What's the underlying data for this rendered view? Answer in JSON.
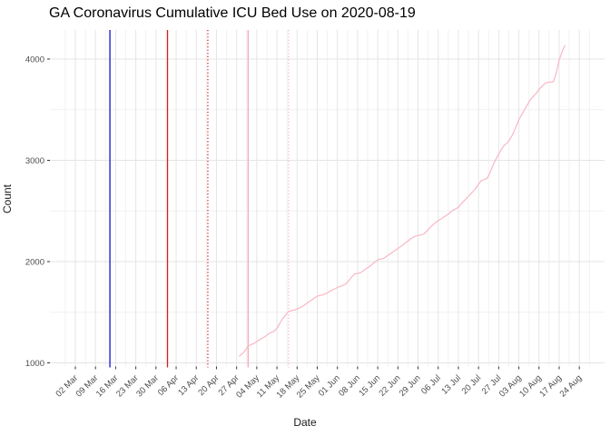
{
  "page": {
    "background": "#ffffff"
  },
  "chart_data": {
    "type": "line",
    "title": "GA Coronavirus Cumulative ICU Bed Use on 2020-08-19",
    "xlabel": "Date",
    "ylabel": "Count",
    "legend": "none",
    "grid": {
      "show": true,
      "major_color": "#e5e5e5",
      "minor_color": "#f1f1f1"
    },
    "x_axis": {
      "start_date": "2020-03-02",
      "end_date": "2020-08-24",
      "tick_interval_days": 7,
      "tick_labels": [
        "02 Mar",
        "09 Mar",
        "16 Mar",
        "23 Mar",
        "30 Mar",
        "06 Apr",
        "13 Apr",
        "20 Apr",
        "27 Apr",
        "04 May",
        "11 May",
        "18 May",
        "25 May",
        "01 Jun",
        "08 Jun",
        "15 Jun",
        "22 Jun",
        "29 Jun",
        "06 Jul",
        "13 Jul",
        "20 Jul",
        "27 Jul",
        "03 Aug",
        "10 Aug",
        "17 Aug",
        "24 Aug"
      ],
      "label_angle_deg": 45,
      "label_color": "#4d4d4d"
    },
    "y_axis": {
      "min": 917,
      "max": 4290,
      "ticks": [
        1000,
        2000,
        3000,
        4000
      ],
      "minor_ticks": [
        1500,
        2500,
        3500
      ],
      "label_color": "#4d4d4d"
    },
    "vlines": [
      {
        "date": "2020-03-14",
        "style": "solid",
        "color": "#1414d2"
      },
      {
        "date": "2020-04-03",
        "style": "solid",
        "color": "#d02020"
      },
      {
        "date": "2020-04-17",
        "style": "dotted",
        "color": "#d02020"
      },
      {
        "date": "2020-05-01",
        "style": "solid",
        "color": "#f7a9bc"
      },
      {
        "date": "2020-05-15",
        "style": "dotted",
        "color": "#f7b4c4"
      }
    ],
    "series": [
      {
        "name": "cumulative-icu-bed-use",
        "color": "#f9b7c4",
        "points": [
          [
            "2020-04-28",
            1068
          ],
          [
            "2020-04-29",
            1090
          ],
          [
            "2020-04-30",
            1125
          ],
          [
            "2020-05-01",
            1166
          ],
          [
            "2020-05-02",
            1180
          ],
          [
            "2020-05-03",
            1192
          ],
          [
            "2020-05-04",
            1210
          ],
          [
            "2020-05-05",
            1230
          ],
          [
            "2020-05-06",
            1246
          ],
          [
            "2020-05-07",
            1262
          ],
          [
            "2020-05-08",
            1285
          ],
          [
            "2020-05-09",
            1300
          ],
          [
            "2020-05-10",
            1312
          ],
          [
            "2020-05-11",
            1340
          ],
          [
            "2020-05-12",
            1392
          ],
          [
            "2020-05-13",
            1436
          ],
          [
            "2020-05-14",
            1472
          ],
          [
            "2020-05-15",
            1508
          ],
          [
            "2020-05-16",
            1516
          ],
          [
            "2020-05-17",
            1522
          ],
          [
            "2020-05-18",
            1532
          ],
          [
            "2020-05-19",
            1545
          ],
          [
            "2020-05-20",
            1560
          ],
          [
            "2020-05-21",
            1580
          ],
          [
            "2020-05-22",
            1602
          ],
          [
            "2020-05-23",
            1620
          ],
          [
            "2020-05-24",
            1640
          ],
          [
            "2020-05-25",
            1658
          ],
          [
            "2020-05-26",
            1666
          ],
          [
            "2020-05-27",
            1672
          ],
          [
            "2020-05-28",
            1682
          ],
          [
            "2020-05-29",
            1700
          ],
          [
            "2020-05-30",
            1716
          ],
          [
            "2020-05-31",
            1730
          ],
          [
            "2020-06-01",
            1744
          ],
          [
            "2020-06-02",
            1756
          ],
          [
            "2020-06-03",
            1766
          ],
          [
            "2020-06-04",
            1780
          ],
          [
            "2020-06-05",
            1815
          ],
          [
            "2020-06-06",
            1850
          ],
          [
            "2020-06-07",
            1878
          ],
          [
            "2020-06-08",
            1884
          ],
          [
            "2020-06-09",
            1890
          ],
          [
            "2020-06-10",
            1910
          ],
          [
            "2020-06-11",
            1930
          ],
          [
            "2020-06-12",
            1950
          ],
          [
            "2020-06-13",
            1972
          ],
          [
            "2020-06-14",
            1995
          ],
          [
            "2020-06-15",
            2018
          ],
          [
            "2020-06-16",
            2026
          ],
          [
            "2020-06-17",
            2030
          ],
          [
            "2020-06-18",
            2050
          ],
          [
            "2020-06-19",
            2070
          ],
          [
            "2020-06-20",
            2090
          ],
          [
            "2020-06-21",
            2110
          ],
          [
            "2020-06-22",
            2128
          ],
          [
            "2020-06-23",
            2150
          ],
          [
            "2020-06-24",
            2170
          ],
          [
            "2020-06-25",
            2192
          ],
          [
            "2020-06-26",
            2215
          ],
          [
            "2020-06-27",
            2235
          ],
          [
            "2020-06-28",
            2250
          ],
          [
            "2020-06-29",
            2258
          ],
          [
            "2020-06-30",
            2263
          ],
          [
            "2020-07-01",
            2272
          ],
          [
            "2020-07-02",
            2300
          ],
          [
            "2020-07-03",
            2330
          ],
          [
            "2020-07-04",
            2360
          ],
          [
            "2020-07-05",
            2385
          ],
          [
            "2020-07-06",
            2405
          ],
          [
            "2020-07-07",
            2420
          ],
          [
            "2020-07-08",
            2440
          ],
          [
            "2020-07-09",
            2460
          ],
          [
            "2020-07-10",
            2480
          ],
          [
            "2020-07-11",
            2505
          ],
          [
            "2020-07-12",
            2520
          ],
          [
            "2020-07-13",
            2536
          ],
          [
            "2020-07-14",
            2570
          ],
          [
            "2020-07-15",
            2600
          ],
          [
            "2020-07-16",
            2630
          ],
          [
            "2020-07-17",
            2660
          ],
          [
            "2020-07-18",
            2690
          ],
          [
            "2020-07-19",
            2722
          ],
          [
            "2020-07-20",
            2765
          ],
          [
            "2020-07-21",
            2800
          ],
          [
            "2020-07-22",
            2810
          ],
          [
            "2020-07-23",
            2822
          ],
          [
            "2020-07-24",
            2880
          ],
          [
            "2020-07-25",
            2950
          ],
          [
            "2020-07-26",
            3010
          ],
          [
            "2020-07-27",
            3060
          ],
          [
            "2020-07-28",
            3112
          ],
          [
            "2020-07-29",
            3150
          ],
          [
            "2020-07-30",
            3172
          ],
          [
            "2020-07-31",
            3215
          ],
          [
            "2020-08-01",
            3262
          ],
          [
            "2020-08-02",
            3330
          ],
          [
            "2020-08-03",
            3400
          ],
          [
            "2020-08-04",
            3452
          ],
          [
            "2020-08-05",
            3500
          ],
          [
            "2020-08-06",
            3550
          ],
          [
            "2020-08-07",
            3600
          ],
          [
            "2020-08-08",
            3630
          ],
          [
            "2020-08-09",
            3660
          ],
          [
            "2020-08-10",
            3700
          ],
          [
            "2020-08-11",
            3730
          ],
          [
            "2020-08-12",
            3756
          ],
          [
            "2020-08-13",
            3770
          ],
          [
            "2020-08-14",
            3772
          ],
          [
            "2020-08-15",
            3776
          ],
          [
            "2020-08-16",
            3860
          ],
          [
            "2020-08-17",
            3990
          ],
          [
            "2020-08-18",
            4072
          ],
          [
            "2020-08-19",
            4134
          ]
        ]
      }
    ]
  }
}
